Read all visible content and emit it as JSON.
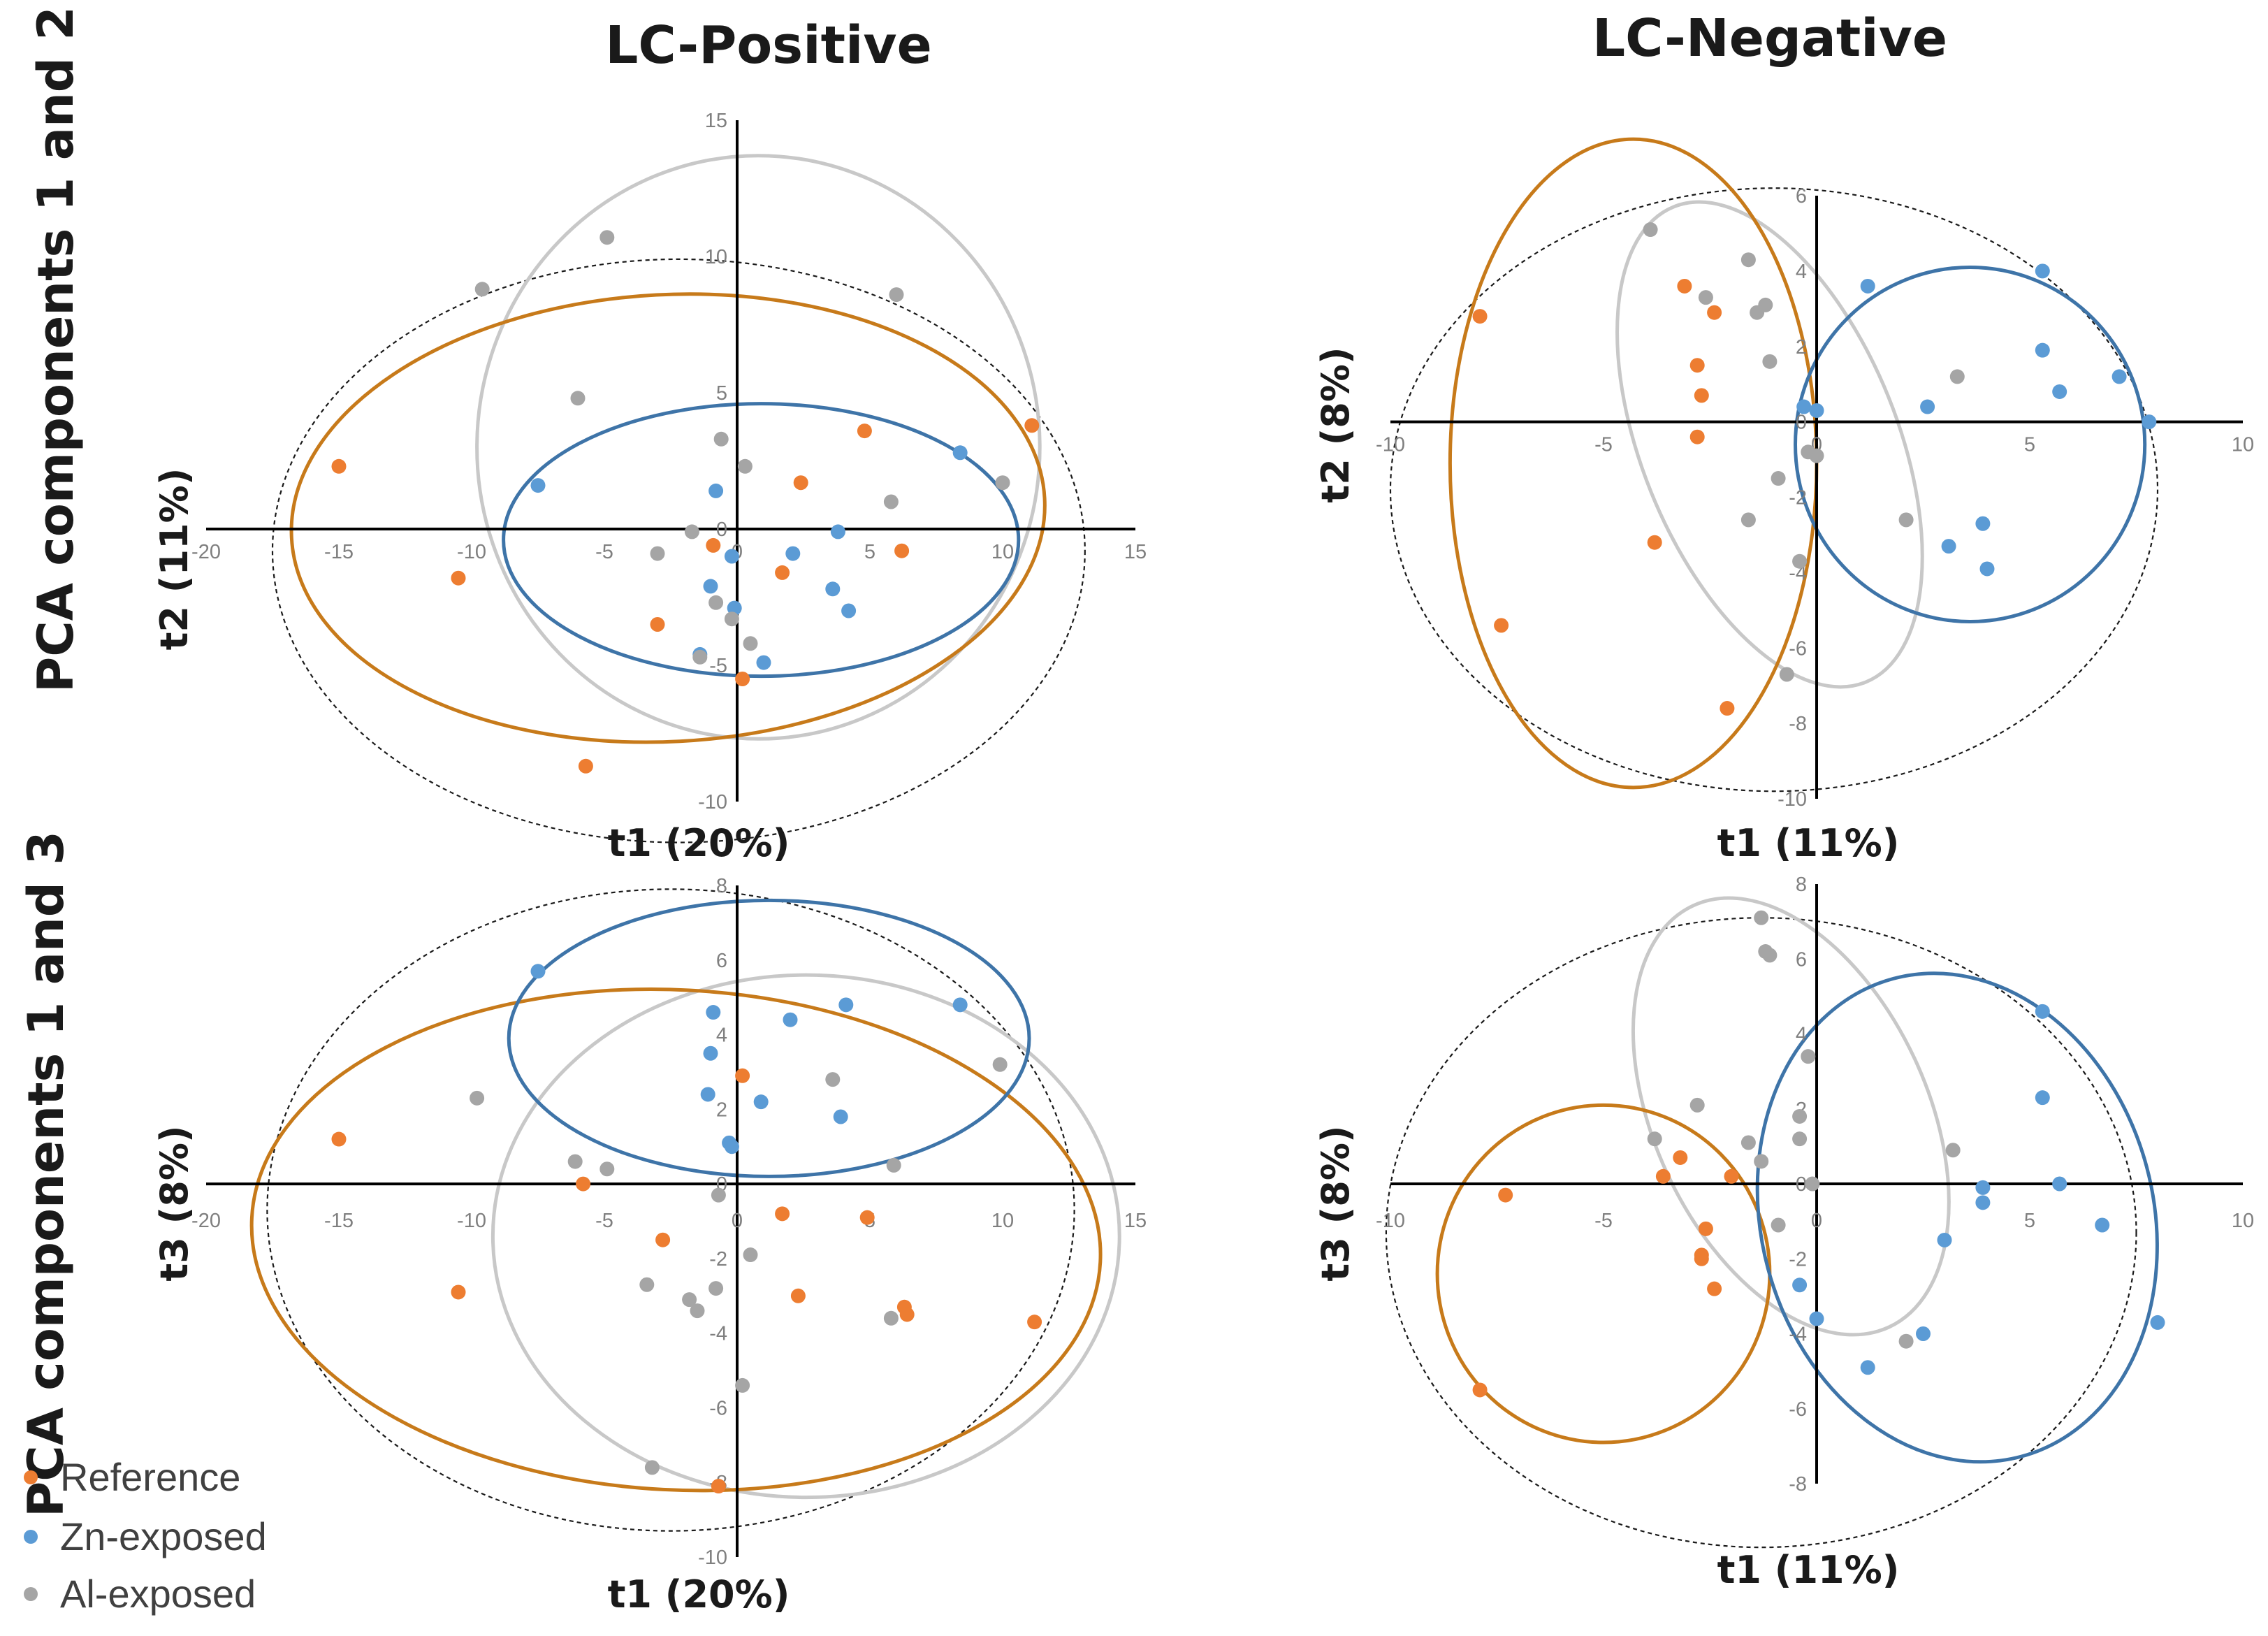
{
  "column_titles": [
    "LC-Positive",
    "LC-Negative"
  ],
  "row_titles": [
    "PCA components 1 and 2",
    "PCA components 1 and 3"
  ],
  "legend": [
    {
      "label": "Reference",
      "color": "#ED7D31"
    },
    {
      "label": "Zn-exposed",
      "color": "#5B9BD5"
    },
    {
      "label": "Al-exposed",
      "color": "#A5A5A5"
    }
  ],
  "ellipse_colors": {
    "Reference": "#C77A1A",
    "Zn-exposed": "#3E74A8",
    "Al-exposed": "#C8C8C8",
    "hotelling": "#1a1a1a"
  },
  "chart_data": [
    {
      "type": "scatter",
      "panel": "LC-Positive, components 1 and 2",
      "xlabel": "t1 (20%)",
      "ylabel": "t2 (11%)",
      "xlim": [
        -20,
        15
      ],
      "ylim": [
        -10,
        15
      ],
      "xticks": [
        -20,
        -15,
        -10,
        -5,
        0,
        5,
        10,
        15
      ],
      "yticks": [
        -10,
        -5,
        0,
        5,
        10,
        15
      ],
      "series": [
        {
          "name": "Reference",
          "points": [
            [
              -15,
              2.3
            ],
            [
              -10.5,
              -1.8
            ],
            [
              -5.7,
              -8.7
            ],
            [
              -3,
              -3.5
            ],
            [
              -0.9,
              -0.6
            ],
            [
              0.2,
              -5.5
            ],
            [
              1.7,
              -1.6
            ],
            [
              2.4,
              1.7
            ],
            [
              4.8,
              3.6
            ],
            [
              6.2,
              -0.8
            ],
            [
              11.1,
              3.8
            ]
          ]
        },
        {
          "name": "Zn-exposed",
          "points": [
            [
              -7.5,
              1.6
            ],
            [
              -0.8,
              1.4
            ],
            [
              -1,
              -2.1
            ],
            [
              -0.2,
              -1
            ],
            [
              -0.1,
              -2.9
            ],
            [
              -1.4,
              -4.6
            ],
            [
              1,
              -4.9
            ],
            [
              2.1,
              -0.9
            ],
            [
              3.6,
              -2.2
            ],
            [
              4.2,
              -3
            ],
            [
              3.8,
              -0.1
            ],
            [
              8.4,
              2.8
            ]
          ]
        },
        {
          "name": "Al-exposed",
          "points": [
            [
              -9.6,
              8.8
            ],
            [
              -4.9,
              10.7
            ],
            [
              -6,
              4.8
            ],
            [
              -3,
              -0.9
            ],
            [
              -0.6,
              3.3
            ],
            [
              0.3,
              2.3
            ],
            [
              -1.7,
              -0.1
            ],
            [
              -0.8,
              -2.7
            ],
            [
              -0.2,
              -3.3
            ],
            [
              0.5,
              -4.2
            ],
            [
              -1.4,
              -4.7
            ],
            [
              5.8,
              1
            ],
            [
              6,
              8.6
            ],
            [
              10,
              1.7
            ]
          ]
        }
      ],
      "ellipses": [
        {
          "name": "Reference",
          "center": [
            -2.6,
            0.4
          ],
          "radii": [
            14.2,
            8.2
          ],
          "angle_deg": 3
        },
        {
          "name": "Zn-exposed",
          "center": [
            0.9,
            -0.4
          ],
          "radii": [
            9.7,
            5
          ],
          "angle_deg": 0
        },
        {
          "name": "Al-exposed",
          "center": [
            0.8,
            3
          ],
          "radii": [
            10.6,
            10.7
          ],
          "angle_deg": 0
        },
        {
          "name": "hotelling",
          "center": [
            -2.2,
            -0.8
          ],
          "radii": [
            15.3,
            10.7
          ],
          "angle_deg": 0
        }
      ]
    },
    {
      "type": "scatter",
      "panel": "LC-Negative, components 1 and 2",
      "xlabel": "t1 (11%)",
      "ylabel": "t2 (8%)",
      "xlim": [
        -10,
        10
      ],
      "ylim": [
        -10,
        6
      ],
      "xticks": [
        -10,
        -5,
        0,
        5,
        10
      ],
      "yticks": [
        -10,
        -8,
        -6,
        -4,
        -2,
        0,
        2,
        4,
        6
      ],
      "series": [
        {
          "name": "Reference",
          "points": [
            [
              -7.9,
              2.8
            ],
            [
              -3.1,
              3.6
            ],
            [
              -2.4,
              2.9
            ],
            [
              -2.8,
              1.5
            ],
            [
              -2.7,
              0.7
            ],
            [
              -2.8,
              -0.4
            ],
            [
              -3.8,
              -3.2
            ],
            [
              -7.4,
              -5.4
            ],
            [
              -2.1,
              -7.6
            ]
          ]
        },
        {
          "name": "Zn-exposed",
          "points": [
            [
              -0.3,
              0.4
            ],
            [
              0,
              0.3
            ],
            [
              1.2,
              3.6
            ],
            [
              2.6,
              0.4
            ],
            [
              5.3,
              4
            ],
            [
              5.3,
              1.9
            ],
            [
              5.7,
              0.8
            ],
            [
              7.1,
              1.2
            ],
            [
              7.8,
              0
            ],
            [
              3.1,
              -3.3
            ],
            [
              3.9,
              -2.7
            ],
            [
              4,
              -3.9
            ]
          ]
        },
        {
          "name": "Al-exposed",
          "points": [
            [
              -3.9,
              5.1
            ],
            [
              -2.6,
              3.3
            ],
            [
              -1.6,
              4.3
            ],
            [
              -1.2,
              3.1
            ],
            [
              -1.4,
              2.9
            ],
            [
              -1.1,
              1.6
            ],
            [
              0,
              -0.9
            ],
            [
              -0.9,
              -1.5
            ],
            [
              -1.6,
              -2.6
            ],
            [
              -0.4,
              -3.7
            ],
            [
              -0.7,
              -6.7
            ],
            [
              2.1,
              -2.6
            ],
            [
              3.3,
              1.2
            ],
            [
              -0.2,
              -0.8
            ]
          ]
        }
      ],
      "ellipses": [
        {
          "name": "Reference",
          "center": [
            -4.3,
            -1.1
          ],
          "radii": [
            4.3,
            8.6
          ],
          "angle_deg": 0
        },
        {
          "name": "Zn-exposed",
          "center": [
            3.6,
            -0.6
          ],
          "radii": [
            4.1,
            4.7
          ],
          "angle_deg": 0
        },
        {
          "name": "Al-exposed",
          "center": [
            -1.1,
            -0.6
          ],
          "radii": [
            3,
            6.8
          ],
          "angle_deg": 22
        },
        {
          "name": "hotelling",
          "center": [
            -1,
            -1.8
          ],
          "radii": [
            9,
            8
          ],
          "angle_deg": 0
        }
      ]
    },
    {
      "type": "scatter",
      "panel": "LC-Positive, components 1 and 3",
      "xlabel": "t1 (20%)",
      "ylabel": "t3 (8%)",
      "xlim": [
        -20,
        15
      ],
      "ylim": [
        -10,
        8
      ],
      "xticks": [
        -20,
        -15,
        -10,
        -5,
        0,
        5,
        10,
        15
      ],
      "yticks": [
        -10,
        -8,
        -6,
        -4,
        -2,
        0,
        2,
        4,
        6,
        8
      ],
      "series": [
        {
          "name": "Reference",
          "points": [
            [
              -15,
              1.2
            ],
            [
              -10.5,
              -2.9
            ],
            [
              -5.8,
              0
            ],
            [
              -2.8,
              -1.5
            ],
            [
              0.2,
              2.9
            ],
            [
              1.7,
              -0.8
            ],
            [
              2.3,
              -3
            ],
            [
              4.9,
              -0.9
            ],
            [
              6.3,
              -3.3
            ],
            [
              6.4,
              -3.5
            ],
            [
              11.2,
              -3.7
            ],
            [
              -0.7,
              -8.1
            ]
          ]
        },
        {
          "name": "Zn-exposed",
          "points": [
            [
              -7.5,
              5.7
            ],
            [
              -1,
              3.5
            ],
            [
              -1.1,
              2.4
            ],
            [
              -0.3,
              1.1
            ],
            [
              -0.2,
              1
            ],
            [
              0.9,
              2.2
            ],
            [
              2,
              4.4
            ],
            [
              4.1,
              4.8
            ],
            [
              8.4,
              4.8
            ],
            [
              3.9,
              1.8
            ],
            [
              -0.9,
              4.6
            ]
          ]
        },
        {
          "name": "Al-exposed",
          "points": [
            [
              -9.8,
              2.3
            ],
            [
              -6.1,
              0.6
            ],
            [
              -4.9,
              0.4
            ],
            [
              -3.4,
              -2.7
            ],
            [
              -1.8,
              -3.1
            ],
            [
              -0.8,
              -2.8
            ],
            [
              -1.5,
              -3.4
            ],
            [
              0.5,
              -1.9
            ],
            [
              -0.7,
              -0.3
            ],
            [
              0.2,
              -5.4
            ],
            [
              3.6,
              2.8
            ],
            [
              5.8,
              -3.6
            ],
            [
              5.9,
              0.5
            ],
            [
              9.9,
              3.2
            ],
            [
              -3.2,
              -7.6
            ]
          ]
        }
      ],
      "ellipses": [
        {
          "name": "Reference",
          "center": [
            -2.3,
            -1.5
          ],
          "radii": [
            16,
            6.7
          ],
          "angle_deg": -3
        },
        {
          "name": "Zn-exposed",
          "center": [
            1.2,
            3.9
          ],
          "radii": [
            9.8,
            3.7
          ],
          "angle_deg": 0
        },
        {
          "name": "Al-exposed",
          "center": [
            2.6,
            -1.4
          ],
          "radii": [
            11.8,
            7
          ],
          "angle_deg": 0
        },
        {
          "name": "hotelling",
          "center": [
            -2.5,
            -0.7
          ],
          "radii": [
            15.2,
            8.6
          ],
          "angle_deg": 0
        }
      ]
    },
    {
      "type": "scatter",
      "panel": "LC-Negative, components 1 and 3",
      "xlabel": "t1 (11%)",
      "ylabel": "t3 (8%)",
      "xlim": [
        -10,
        10
      ],
      "ylim": [
        -8,
        8
      ],
      "xticks": [
        -10,
        -5,
        0,
        5,
        10
      ],
      "yticks": [
        -8,
        -6,
        -4,
        -2,
        0,
        2,
        4,
        6,
        8
      ],
      "series": [
        {
          "name": "Reference",
          "points": [
            [
              -7.3,
              -0.3
            ],
            [
              -7.9,
              -5.5
            ],
            [
              -3.6,
              0.2
            ],
            [
              -3.2,
              0.7
            ],
            [
              -2,
              0.2
            ],
            [
              -2.6,
              -1.2
            ],
            [
              -2.7,
              -1.9
            ],
            [
              -2.7,
              -2
            ],
            [
              -2.4,
              -2.8
            ]
          ]
        },
        {
          "name": "Zn-exposed",
          "points": [
            [
              -0.4,
              -2.7
            ],
            [
              0,
              -3.6
            ],
            [
              1.2,
              -4.9
            ],
            [
              2.5,
              -4
            ],
            [
              3,
              -1.5
            ],
            [
              3.9,
              -0.5
            ],
            [
              3.9,
              -0.1
            ],
            [
              5.3,
              4.6
            ],
            [
              5.3,
              2.3
            ],
            [
              5.7,
              0
            ],
            [
              6.7,
              -1.1
            ],
            [
              8,
              -3.7
            ]
          ]
        },
        {
          "name": "Al-exposed",
          "points": [
            [
              -1.3,
              7.1
            ],
            [
              -1.2,
              6.2
            ],
            [
              -1.1,
              6.1
            ],
            [
              -0.2,
              3.4
            ],
            [
              -0.4,
              1.8
            ],
            [
              -2.8,
              2.1
            ],
            [
              -3.8,
              1.2
            ],
            [
              -1.6,
              1.1
            ],
            [
              -1.3,
              0.6
            ],
            [
              -0.4,
              1.2
            ],
            [
              -0.9,
              -1.1
            ],
            [
              3.2,
              0.9
            ],
            [
              2.1,
              -4.2
            ],
            [
              -0.1,
              0
            ]
          ]
        }
      ],
      "ellipses": [
        {
          "name": "Reference",
          "center": [
            -5,
            -2.4
          ],
          "radii": [
            3.9,
            4.5
          ],
          "angle_deg": 0
        },
        {
          "name": "Zn-exposed",
          "center": [
            3.3,
            -0.9
          ],
          "radii": [
            4.6,
            6.6
          ],
          "angle_deg": 15
        },
        {
          "name": "Al-exposed",
          "center": [
            -0.6,
            1.8
          ],
          "radii": [
            3.2,
            6.2
          ],
          "angle_deg": 25
        },
        {
          "name": "hotelling",
          "center": [
            -1.3,
            -1.3
          ],
          "radii": [
            8.8,
            8.4
          ],
          "angle_deg": 0
        }
      ]
    }
  ]
}
